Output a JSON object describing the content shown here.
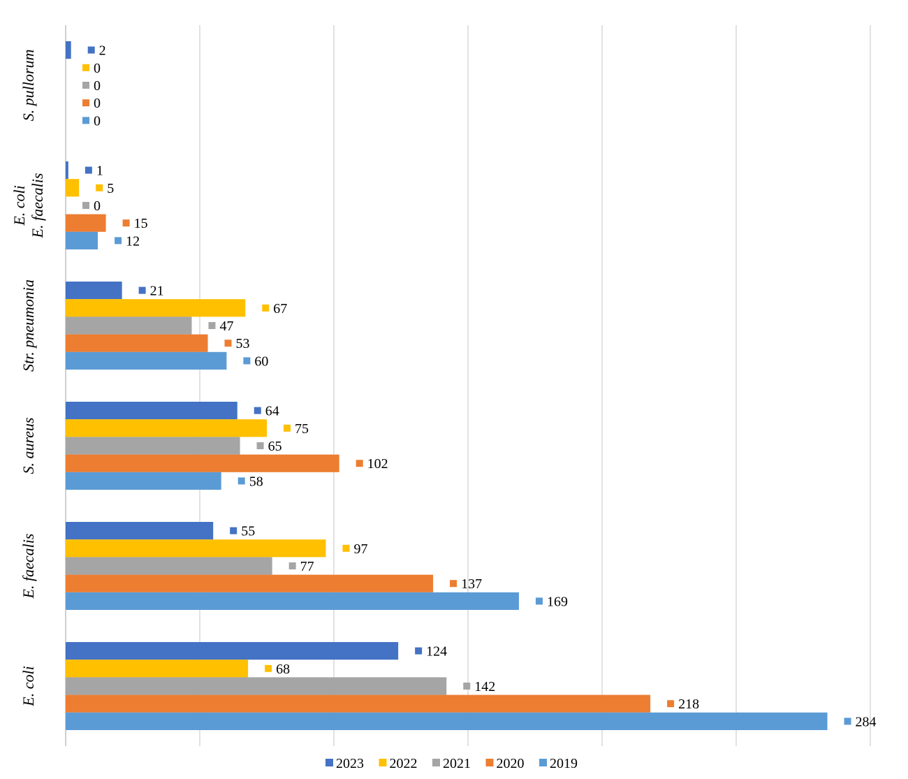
{
  "chart_data": {
    "type": "bar",
    "orientation": "horizontal",
    "title": "",
    "xlabel": "",
    "ylabel": "",
    "xlim": [
      0,
      300
    ],
    "x_tick_step": 50,
    "grid": true,
    "legend_position": "bottom",
    "categories": [
      "E. coli",
      "E. faecalis",
      "S. aureus",
      "Str. pneumonia",
      "E. coli E. faecalis",
      "S. pullorum"
    ],
    "category_lines": [
      [
        "E. coli"
      ],
      [
        "E. faecalis"
      ],
      [
        "S. aureus"
      ],
      [
        "Str. pneumonia"
      ],
      [
        "E. coli",
        "E. faecalis"
      ],
      [
        "S. pullorum"
      ]
    ],
    "series": [
      {
        "name": "2023",
        "color": "#4472C4",
        "values": [
          124,
          55,
          64,
          21,
          1,
          2
        ]
      },
      {
        "name": "2022",
        "color": "#FFC000",
        "values": [
          68,
          97,
          75,
          67,
          5,
          0
        ]
      },
      {
        "name": "2021",
        "color": "#A5A5A5",
        "values": [
          142,
          77,
          65,
          47,
          0,
          0
        ]
      },
      {
        "name": "2020",
        "color": "#ED7D31",
        "values": [
          218,
          137,
          102,
          53,
          15,
          0
        ]
      },
      {
        "name": "2019",
        "color": "#5B9BD5",
        "values": [
          284,
          169,
          58,
          60,
          12,
          0
        ]
      }
    ],
    "grid_color": "#d9d9d9"
  }
}
